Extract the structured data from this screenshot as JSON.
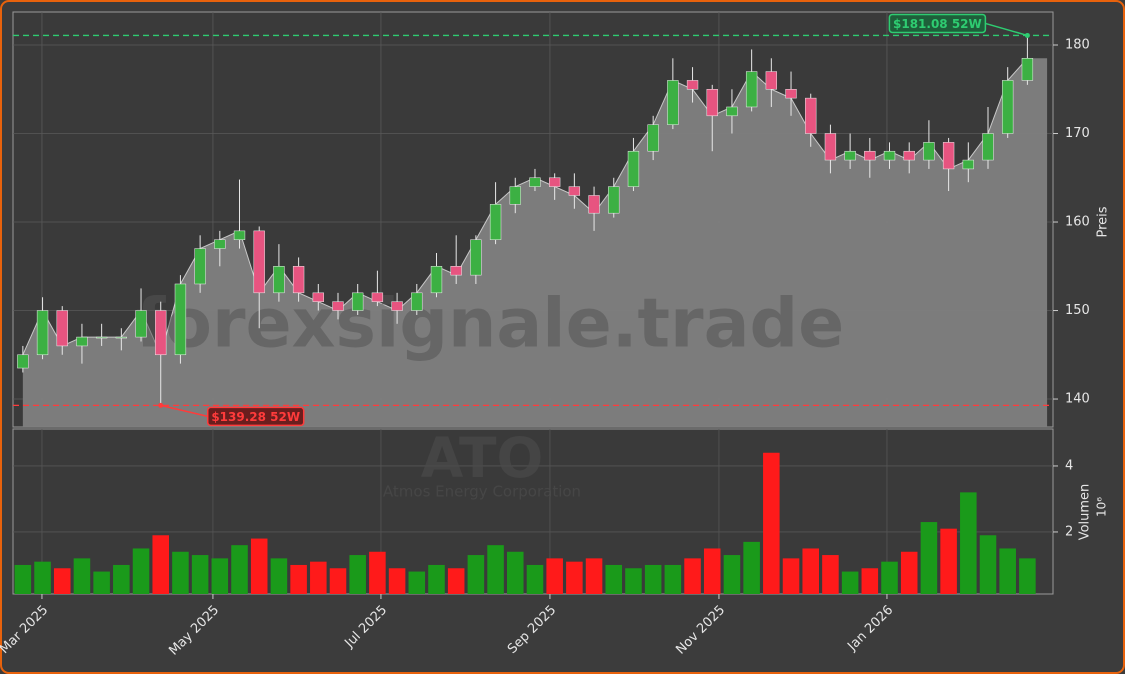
{
  "chart_data": {
    "type": "candlestick",
    "watermark": "forexsignale.trade",
    "symbol": "ATO",
    "company": "Atmos Energy Corporation",
    "y_label": "Preis",
    "volume_label": "Volumen",
    "volume_scale_label": "10⁶",
    "categories": [
      null,
      null,
      null,
      null,
      null,
      null,
      null,
      null,
      null,
      null,
      null,
      null,
      null,
      null,
      null,
      null,
      null,
      null,
      null,
      null,
      null,
      null,
      null,
      null,
      null,
      null,
      null,
      null,
      null,
      null,
      null,
      null,
      null,
      null,
      null,
      null,
      null,
      null,
      null,
      null,
      null,
      null,
      null,
      null,
      null,
      null,
      null,
      null,
      null,
      null,
      null,
      null
    ],
    "open": [
      143.5,
      145,
      150,
      146,
      147,
      147,
      147,
      150,
      145,
      153,
      157,
      158,
      159,
      152,
      155,
      152,
      151,
      150,
      152,
      151,
      150,
      152,
      155,
      154,
      158,
      162,
      164,
      165,
      164,
      163,
      161,
      164,
      168,
      171,
      176,
      175,
      172,
      173,
      177,
      175,
      174,
      170,
      167,
      168,
      167,
      168,
      167,
      169,
      166,
      167,
      170,
      176
    ],
    "high": [
      146,
      151.5,
      150.5,
      148.5,
      148.5,
      148,
      152.5,
      151,
      154,
      158.5,
      159,
      164.8,
      159.5,
      157.5,
      156,
      153,
      152,
      153,
      154.5,
      152,
      153,
      156.5,
      158.5,
      158.5,
      164.5,
      165,
      166,
      165.5,
      165.5,
      164,
      165,
      169.5,
      172,
      178.5,
      177.5,
      175.5,
      175,
      179.5,
      178.5,
      177,
      174.5,
      171,
      170,
      169.5,
      169,
      169,
      171.5,
      169.5,
      169,
      173,
      177.5,
      181.08
    ],
    "low": [
      143,
      144.5,
      145,
      144,
      146,
      145.5,
      146.5,
      139.28,
      144,
      152,
      155,
      157,
      148,
      151,
      151,
      150,
      149,
      149.5,
      150.5,
      148.5,
      149.5,
      151.5,
      153,
      153,
      157.5,
      161,
      163.5,
      162.5,
      161.5,
      159,
      160.5,
      163.5,
      167,
      170.5,
      173.5,
      168,
      170,
      172.5,
      173,
      172,
      168.5,
      165.5,
      166,
      165,
      166,
      165.5,
      166,
      163.5,
      164.5,
      166,
      169.5,
      175.5
    ],
    "close": [
      145,
      150,
      146,
      147,
      147,
      147,
      150,
      145,
      153,
      157,
      158,
      159,
      152,
      155,
      152,
      151,
      150,
      152,
      151,
      150,
      152,
      155,
      154,
      158,
      162,
      164,
      165,
      164,
      163,
      161,
      164,
      168,
      171,
      176,
      175,
      172,
      173,
      177,
      175,
      174,
      170,
      167,
      168,
      167,
      168,
      167,
      169,
      166,
      167,
      170,
      176,
      178.5
    ],
    "volume": [
      1.0,
      1.1,
      0.9,
      1.2,
      0.8,
      1.0,
      1.5,
      1.9,
      1.4,
      1.3,
      1.2,
      1.6,
      1.8,
      1.2,
      1.0,
      1.1,
      0.9,
      1.3,
      1.4,
      0.9,
      0.8,
      1.0,
      0.9,
      1.3,
      1.6,
      1.4,
      1.0,
      1.2,
      1.1,
      1.2,
      1.0,
      0.9,
      1.0,
      1.0,
      1.2,
      1.5,
      1.3,
      1.7,
      4.4,
      1.2,
      1.5,
      1.3,
      0.8,
      0.9,
      1.1,
      1.4,
      2.3,
      2.1,
      3.2,
      1.9,
      1.5,
      1.2
    ],
    "up_color": "#3cb043",
    "down_color": "#e75480",
    "volume_up_color": "#1a9a1a",
    "volume_down_color": "#ff1a1a",
    "area_color": "#808080",
    "xlim": [
      -0.5,
      52.3
    ],
    "ylim": [
      136.84,
      183.73
    ],
    "yticks": [
      140,
      150,
      160,
      170,
      180
    ],
    "volume_ylim": [
      0.12,
      5.12
    ],
    "volume_ticks": [
      2,
      4
    ],
    "xticks": [
      {
        "value": 0.97,
        "label": "Mar 2025"
      },
      {
        "value": 9.65,
        "label": "May 2025"
      },
      {
        "value": 18.18,
        "label": "Jul 2025"
      },
      {
        "value": 26.76,
        "label": "Sep 2025"
      },
      {
        "value": 35.34,
        "label": "Nov 2025"
      },
      {
        "value": 43.87,
        "label": "Jan 2026"
      }
    ],
    "grid": true,
    "annotations": [
      {
        "value": 181.08,
        "label": "$181.08 52W",
        "color": "#2ecc71",
        "kind": "high"
      },
      {
        "value": 139.28,
        "label": "$139.28 52W",
        "color": "#ff3b3b",
        "kind": "low"
      }
    ]
  }
}
